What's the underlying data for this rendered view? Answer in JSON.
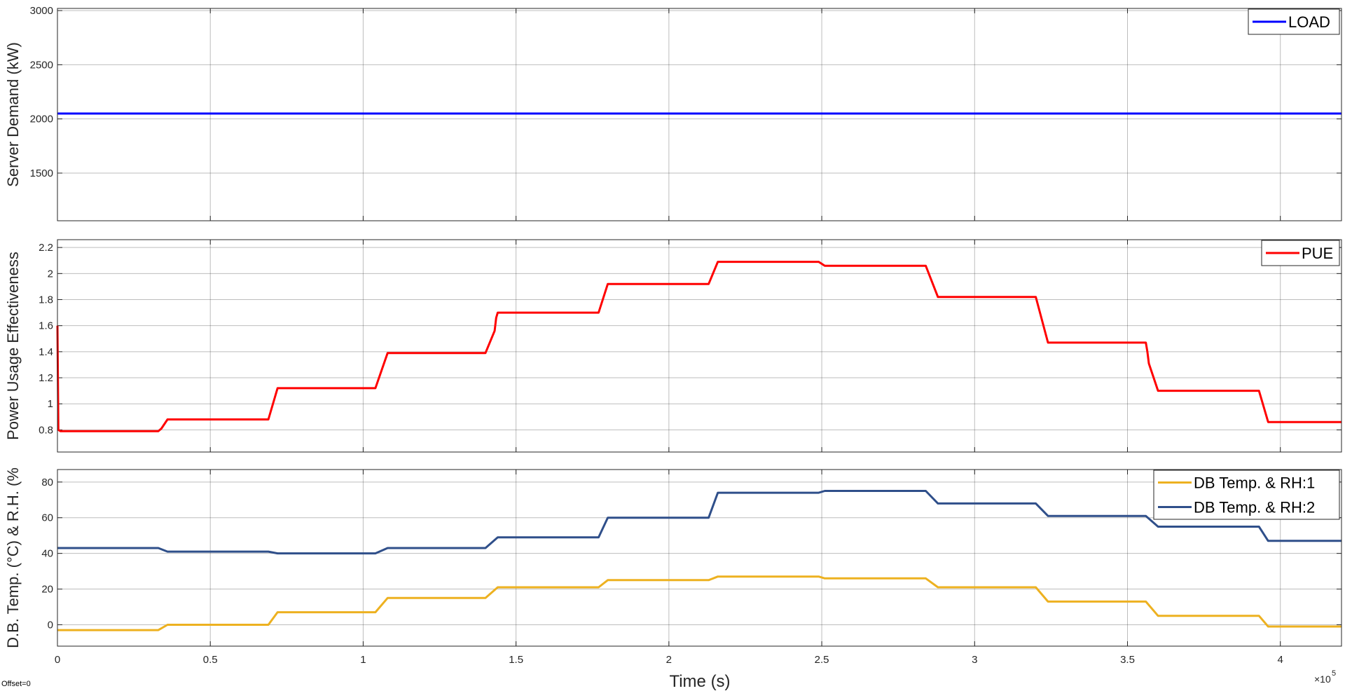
{
  "figure": {
    "xlabel": "Time (s)",
    "x_exponent_label": "×10",
    "x_exponent_power": "5",
    "offset_text": "Offset=0"
  },
  "chart_data": [
    {
      "type": "line",
      "title": "",
      "ylabel": "Server Demand (kW)",
      "xlabel": "",
      "xlim": [
        0,
        4.2
      ],
      "ylim": [
        1060,
        3020
      ],
      "xticks": [
        0,
        0.5,
        1,
        1.5,
        2,
        2.5,
        3,
        3.5,
        4
      ],
      "xtick_labels": [
        "0",
        "0.5",
        "1",
        "1.5",
        "2",
        "2.5",
        "3",
        "3.5",
        "4"
      ],
      "yticks": [
        1500,
        2000,
        2500,
        3000
      ],
      "ytick_labels": [
        "1500",
        "2000",
        "2500",
        "3000"
      ],
      "grid": true,
      "legend_position": "top-right",
      "series": [
        {
          "name": "LOAD",
          "color": "#0000ff",
          "x": [
            0,
            4.2
          ],
          "y": [
            2050,
            2050
          ]
        }
      ]
    },
    {
      "type": "line",
      "title": "",
      "ylabel": "Power Usage Effectiveness",
      "xlabel": "",
      "xlim": [
        0,
        4.2
      ],
      "ylim": [
        0.63,
        2.26
      ],
      "xticks": [
        0,
        0.5,
        1,
        1.5,
        2,
        2.5,
        3,
        3.5,
        4
      ],
      "xtick_labels": [
        "0",
        "0.5",
        "1",
        "1.5",
        "2",
        "2.5",
        "3",
        "3.5",
        "4"
      ],
      "yticks": [
        0.8,
        1,
        1.2,
        1.4,
        1.6,
        1.8,
        2,
        2.2
      ],
      "ytick_labels": [
        "0.8",
        "1",
        "1.2",
        "1.4",
        "1.6",
        "1.8",
        "2",
        "2.2"
      ],
      "grid": true,
      "legend_position": "top-right",
      "series": [
        {
          "name": "PUE",
          "color": "#ff0000",
          "x": [
            0,
            0.003,
            0.01,
            0.33,
            0.34,
            0.36,
            0.69,
            0.72,
            1.04,
            1.08,
            1.4,
            1.43,
            1.435,
            1.44,
            1.77,
            1.8,
            2.13,
            2.16,
            2.49,
            2.51,
            2.84,
            2.88,
            3.2,
            3.24,
            3.56,
            3.565,
            3.57,
            3.6,
            3.93,
            3.96,
            4.2
          ],
          "y": [
            1.6,
            0.8,
            0.79,
            0.79,
            0.81,
            0.88,
            0.88,
            1.12,
            1.12,
            1.39,
            1.39,
            1.56,
            1.66,
            1.7,
            1.7,
            1.92,
            1.92,
            2.09,
            2.09,
            2.06,
            2.06,
            1.82,
            1.82,
            1.47,
            1.47,
            1.4,
            1.31,
            1.1,
            1.1,
            0.86,
            0.86
          ]
        }
      ]
    },
    {
      "type": "line",
      "title": "",
      "ylabel": "D.B. Temp. (°C) & R.H. (%",
      "xlabel": "Time (s)",
      "xlim": [
        0,
        4.2
      ],
      "ylim": [
        -12,
        87
      ],
      "xticks": [
        0,
        0.5,
        1,
        1.5,
        2,
        2.5,
        3,
        3.5,
        4
      ],
      "xtick_labels": [
        "0",
        "0.5",
        "1",
        "1.5",
        "2",
        "2.5",
        "3",
        "3.5",
        "4"
      ],
      "yticks": [
        0,
        20,
        40,
        60,
        80
      ],
      "ytick_labels": [
        "0",
        "20",
        "40",
        "60",
        "80"
      ],
      "grid": true,
      "legend_position": "top-right",
      "series": [
        {
          "name": "DB Temp. & RH:1",
          "color": "#edb120",
          "x": [
            0,
            0.33,
            0.36,
            0.69,
            0.72,
            1.04,
            1.08,
            1.4,
            1.44,
            1.77,
            1.8,
            2.13,
            2.16,
            2.49,
            2.51,
            2.84,
            2.88,
            3.2,
            3.24,
            3.56,
            3.6,
            3.93,
            3.96,
            4.2
          ],
          "y": [
            -3,
            -3,
            0,
            0,
            7,
            7,
            15,
            15,
            21,
            21,
            25,
            25,
            27,
            27,
            26,
            26,
            21,
            21,
            13,
            13,
            5,
            5,
            -1,
            -1
          ]
        },
        {
          "name": "DB Temp. & RH:2",
          "color": "#2f4f8a",
          "x": [
            0,
            0.33,
            0.36,
            0.69,
            0.72,
            1.04,
            1.08,
            1.4,
            1.44,
            1.77,
            1.8,
            2.13,
            2.16,
            2.49,
            2.51,
            2.84,
            2.88,
            3.2,
            3.24,
            3.56,
            3.6,
            3.93,
            3.96,
            4.2
          ],
          "y": [
            43,
            43,
            41,
            41,
            40,
            40,
            43,
            43,
            49,
            49,
            60,
            60,
            74,
            74,
            75,
            75,
            68,
            68,
            61,
            61,
            55,
            55,
            47,
            47
          ]
        }
      ]
    }
  ]
}
